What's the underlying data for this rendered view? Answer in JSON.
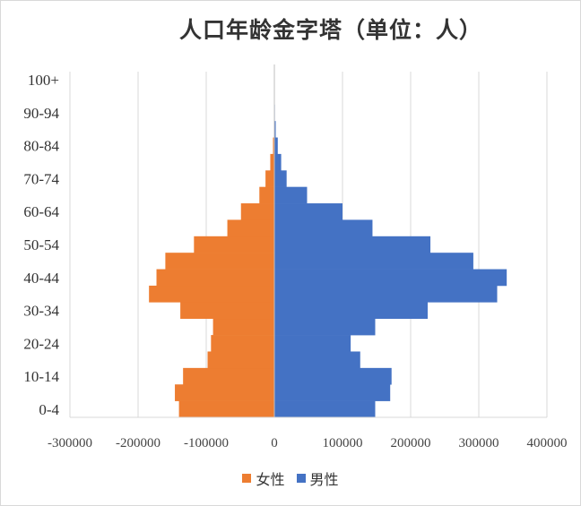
{
  "chart_data": {
    "type": "bar",
    "orientation": "horizontal",
    "layout": "population-pyramid",
    "title": "人口年龄金字塔（单位：人）",
    "xlim": [
      -300000,
      400000
    ],
    "x_ticks": [
      -300000,
      -200000,
      -100000,
      0,
      100000,
      200000,
      300000,
      400000
    ],
    "x_tick_labels": [
      "-300000",
      "-200000",
      "-100000",
      "0",
      "100000",
      "200000",
      "300000",
      "400000"
    ],
    "y_tick_labels": [
      "0-4",
      "10-14",
      "20-24",
      "30-34",
      "40-44",
      "50-54",
      "60-64",
      "70-74",
      "80-84",
      "90-94",
      "100+"
    ],
    "categories": [
      "0-4",
      "5-9",
      "10-14",
      "15-19",
      "20-24",
      "25-29",
      "30-34",
      "35-39",
      "40-44",
      "45-49",
      "50-54",
      "55-59",
      "60-64",
      "65-69",
      "70-74",
      "75-79",
      "80-84",
      "85-89",
      "90-94",
      "95-99",
      "100+"
    ],
    "grid": "vertical",
    "legend_position": "bottom",
    "series": [
      {
        "name": "女性",
        "color": "#ED7D31",
        "values": [
          -140000,
          -146000,
          -134000,
          -98000,
          -93000,
          -90000,
          -138000,
          -184000,
          -173000,
          -160000,
          -118000,
          -69000,
          -49000,
          -22000,
          -13000,
          -6000,
          -2000,
          -500,
          0,
          0,
          0
        ]
      },
      {
        "name": "男性",
        "color": "#4472C4",
        "values": [
          148000,
          170000,
          172000,
          126000,
          112000,
          148000,
          225000,
          327000,
          341000,
          292000,
          229000,
          144000,
          100000,
          48000,
          18000,
          10000,
          5000,
          2000,
          500,
          0,
          0
        ]
      }
    ]
  },
  "legend": {
    "female_label": "女性",
    "male_label": "男性"
  }
}
